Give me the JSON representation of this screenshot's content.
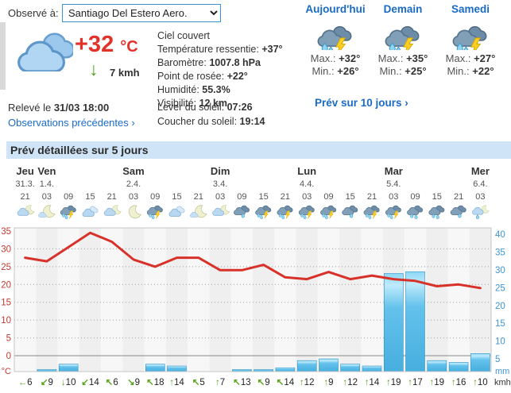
{
  "observed": {
    "label": "Observé à:",
    "station": "Santiago Del Estero Aero."
  },
  "current": {
    "temp": "+32",
    "temp_unit": "°C",
    "wind_arrow": "↓",
    "wind_speed": "7 kmh",
    "icon": "clouds",
    "details": [
      {
        "label": "Ciel couvert",
        "value": ""
      },
      {
        "label": "Température ressentie:",
        "value": "+37°"
      },
      {
        "label": "Baromètre:",
        "value": "1007.8 hPa"
      },
      {
        "label": "Point de rosée:",
        "value": "+22°"
      },
      {
        "label": "Humidité:",
        "value": "55.3%"
      },
      {
        "label": "Visibilité:",
        "value": "12 km"
      }
    ],
    "released_prefix": "Relevé le ",
    "released": "31/03 18:00",
    "observations_link": "Observations précédentes ›",
    "sunrise_label": "Lever du soleil: ",
    "sunrise": "07:26",
    "sunset_label": "Coucher du soleil: ",
    "sunset": "19:14"
  },
  "days3": [
    {
      "title": "Aujourd'hui",
      "icon": "storm",
      "max_label": "Max.: ",
      "max": "+32°",
      "min_label": "Min.: ",
      "min": "+26°"
    },
    {
      "title": "Demain",
      "icon": "storm",
      "max_label": "Max.: ",
      "max": "+35°",
      "min_label": "Min.: ",
      "min": "+25°"
    },
    {
      "title": "Samedi",
      "icon": "storm",
      "max_label": "Max.: ",
      "max": "+27°",
      "min_label": "Min.: ",
      "min": "+22°"
    }
  ],
  "ten_day_link": "Prév sur 10 jours ›",
  "section_title": "Prév détaillées sur 5 jours",
  "chart_data": {
    "type": "line+bar",
    "hours": [
      "21",
      "03",
      "09",
      "15",
      "21",
      "03",
      "09",
      "15",
      "21",
      "03",
      "09",
      "15",
      "21",
      "03",
      "09",
      "15",
      "21",
      "03",
      "09",
      "15",
      "21",
      "03"
    ],
    "day_labels": [
      {
        "name": "Jeu",
        "date": "31.3.",
        "col": 0
      },
      {
        "name": "Ven",
        "date": "1.4.",
        "col": 1
      },
      {
        "name": "Sam",
        "date": "2.4.",
        "col": 5
      },
      {
        "name": "Dim",
        "date": "3.4.",
        "col": 9
      },
      {
        "name": "Lun",
        "date": "4.4.",
        "col": 13
      },
      {
        "name": "Mar",
        "date": "5.4.",
        "col": 17
      },
      {
        "name": "Mer",
        "date": "6.4.",
        "col": 21
      }
    ],
    "icons": [
      "night-cloud",
      "moon-cloud",
      "storm",
      "cloudy",
      "night-cloud",
      "moon",
      "storm",
      "cloudy",
      "moon-cloud",
      "night-cloud",
      "rain1",
      "storm",
      "storm",
      "storm",
      "storm",
      "rain1",
      "storm",
      "storm",
      "rain2",
      "rain2",
      "rain1",
      "night-rain"
    ],
    "series": [
      {
        "name": "Température",
        "type": "line",
        "unit": "°C",
        "color": "#d8312a",
        "values": [
          27.5,
          26.5,
          30.5,
          34.5,
          32,
          27,
          25,
          27.5,
          27.5,
          24,
          24,
          25.5,
          22,
          21.5,
          23.5,
          21.5,
          22.5,
          21.5,
          21,
          19.5,
          20,
          19
        ]
      },
      {
        "name": "Précipitations",
        "type": "bar",
        "unit": "mm",
        "color": "#55b9e6",
        "values": [
          0,
          2,
          3.5,
          0,
          0,
          0,
          3.5,
          3,
          0,
          0,
          2,
          2,
          2.5,
          4.5,
          5,
          3.5,
          3,
          29,
          29.5,
          4.5,
          4,
          6.5
        ]
      }
    ],
    "wind": {
      "unit": "kmh",
      "speeds": [
        6,
        9,
        10,
        14,
        6,
        9,
        18,
        14,
        5,
        7,
        13,
        9,
        14,
        12,
        9,
        12,
        14,
        19,
        17,
        19,
        16,
        10
      ],
      "directions": [
        "←",
        "↙",
        "↓",
        "↙",
        "↖",
        "↘",
        "↖",
        "↑",
        "↖",
        "↑",
        "↖",
        "↖",
        "↖",
        "↑",
        "↑",
        "↑",
        "↑",
        "↑",
        "↑",
        "↑",
        "↑",
        "↑"
      ]
    },
    "left_axis": {
      "unit": "°C",
      "ticks": [
        35,
        30,
        25,
        20,
        15,
        10,
        5,
        0
      ],
      "color": "#c03a32"
    },
    "right_axis": {
      "unit": "mm",
      "ticks": [
        40,
        35,
        30,
        25,
        20,
        15,
        10,
        5
      ],
      "color": "#3d95d8"
    },
    "grid": "dotted horizontal, ylim_temp [0,35], ylim_mm [0,40]"
  }
}
